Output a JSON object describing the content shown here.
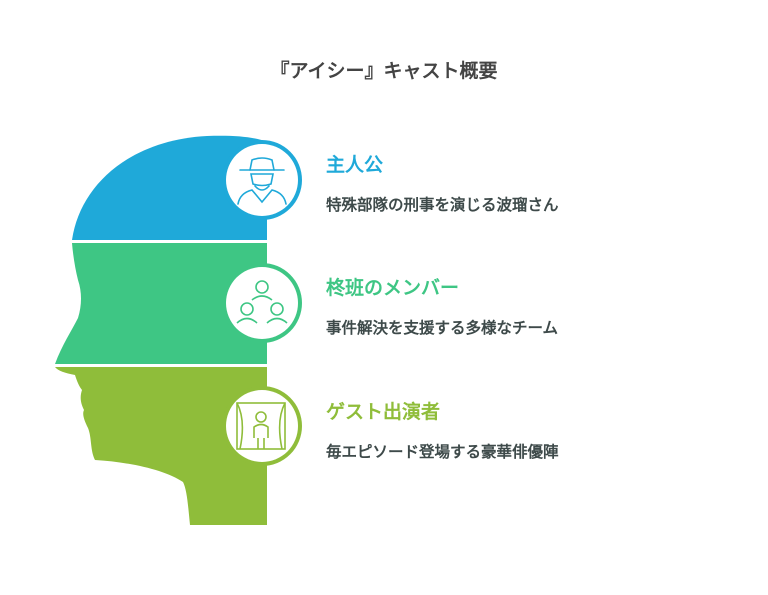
{
  "title": "『アイシー』キャスト概要",
  "colors": {
    "protagonist": "#1fa9d9",
    "team": "#3ec684",
    "guest": "#8fbd3a"
  },
  "sections": [
    {
      "label": "主人公",
      "description": "特殊部隊の刑事を演じる波瑠さん",
      "icon": "detective-icon"
    },
    {
      "label": "柊班のメンバー",
      "description": "事件解決を支援する多様なチーム",
      "icon": "team-icon"
    },
    {
      "label": "ゲスト出演者",
      "description": "毎エピソード登場する豪華俳優陣",
      "icon": "stage-performer-icon"
    }
  ]
}
